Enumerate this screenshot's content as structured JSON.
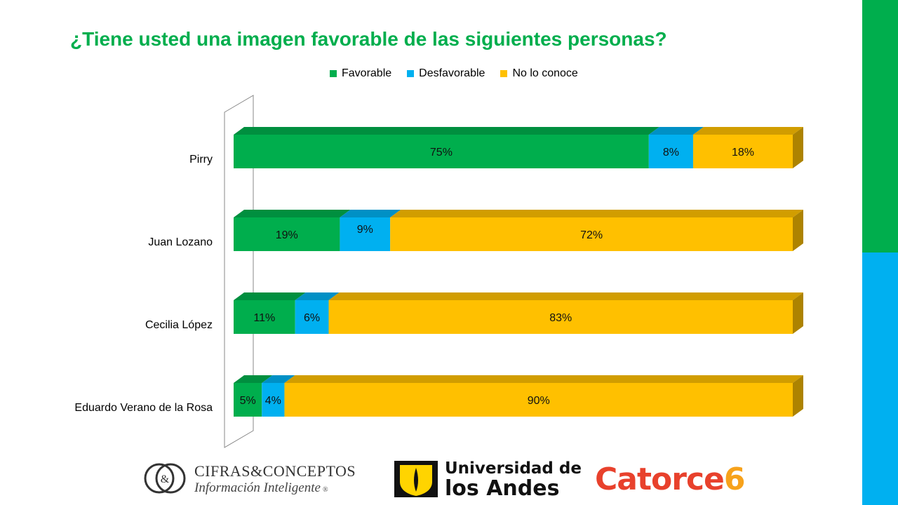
{
  "title": "¿Tiene usted una imagen favorable de las siguientes personas?",
  "colors": {
    "favorable": "#00ae4d",
    "desfavorable": "#00b0f0",
    "no_lo_conoce": "#ffc000",
    "title": "#00ae4d",
    "side_top": "#00ae4d",
    "side_bottom": "#00b0f0"
  },
  "legend": {
    "favorable": "Favorable",
    "desfavorable": "Desfavorable",
    "no_lo_conoce": "No lo conoce"
  },
  "chart_data": {
    "type": "bar",
    "orientation": "horizontal",
    "stacked": true,
    "style": "3d",
    "categories": [
      "Pirry",
      "Juan Lozano",
      "Cecilia López",
      "Eduardo Verano de la Rosa"
    ],
    "series": [
      {
        "name": "Favorable",
        "values": [
          75,
          19,
          11,
          5
        ],
        "labels": [
          "75%",
          "19%",
          "11%",
          "5%"
        ],
        "color": "#00ae4d"
      },
      {
        "name": "Desfavorable",
        "values": [
          8,
          9,
          6,
          4
        ],
        "labels": [
          "8%",
          "9%",
          "6%",
          "4%"
        ],
        "color": "#00b0f0"
      },
      {
        "name": "No lo conoce",
        "values": [
          18,
          72,
          83,
          90
        ],
        "labels": [
          "18%",
          "72%",
          "83%",
          "90%"
        ],
        "color": "#ffc000"
      }
    ],
    "title": "¿Tiene usted una imagen favorable de las siguientes personas?",
    "legend_position": "top",
    "grid": false
  },
  "logos": {
    "cifras": {
      "line1": "CIFRAS&CONCEPTOS",
      "line2": "Información Inteligente",
      "mark": "&",
      "reg": "®"
    },
    "uniandes": {
      "line1": "Universidad de",
      "line2": "los Andes"
    },
    "catorce": {
      "word": "Catorce",
      "number": "6",
      "color": "#e8412c",
      "number_color": "#f7a21b"
    }
  }
}
